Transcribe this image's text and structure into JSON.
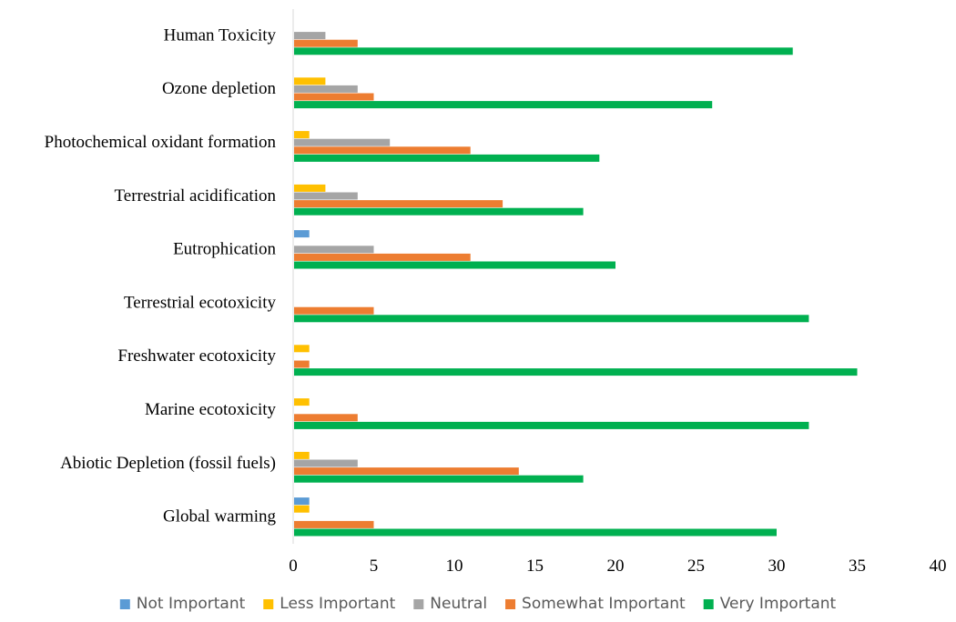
{
  "chart_data": {
    "type": "bar",
    "orientation": "horizontal",
    "categories": [
      "Human Toxicity",
      "Ozone depletion",
      "Photochemical oxidant formation",
      "Terrestrial acidification",
      "Eutrophication",
      "Terrestrial ecotoxicity",
      "Freshwater ecotoxicity",
      "Marine ecotoxicity",
      "Abiotic Depletion (fossil fuels)",
      "Global warming"
    ],
    "series": [
      {
        "name": "Not Important",
        "color": "#5B9BD5",
        "values": [
          0,
          0,
          0,
          0,
          1,
          0,
          0,
          0,
          0,
          1
        ]
      },
      {
        "name": "Less Important",
        "color": "#FFC000",
        "values": [
          0,
          2,
          1,
          2,
          0,
          0,
          1,
          1,
          1,
          1
        ]
      },
      {
        "name": "Neutral",
        "color": "#A5A5A5",
        "values": [
          2,
          4,
          6,
          4,
          5,
          0,
          0,
          0,
          4,
          0
        ]
      },
      {
        "name": "Somewhat Important",
        "color": "#ED7D31",
        "values": [
          4,
          5,
          11,
          13,
          11,
          5,
          1,
          4,
          14,
          5
        ]
      },
      {
        "name": "Very Important",
        "color": "#00B050",
        "values": [
          31,
          26,
          19,
          18,
          20,
          32,
          35,
          32,
          18,
          30
        ]
      }
    ],
    "xlim": [
      0,
      40
    ],
    "xticks": [
      "0",
      "5",
      "10",
      "15",
      "20",
      "25",
      "30",
      "35",
      "40"
    ],
    "title": "",
    "xlabel": "",
    "ylabel": "",
    "grid": false,
    "legend_position": "bottom"
  }
}
